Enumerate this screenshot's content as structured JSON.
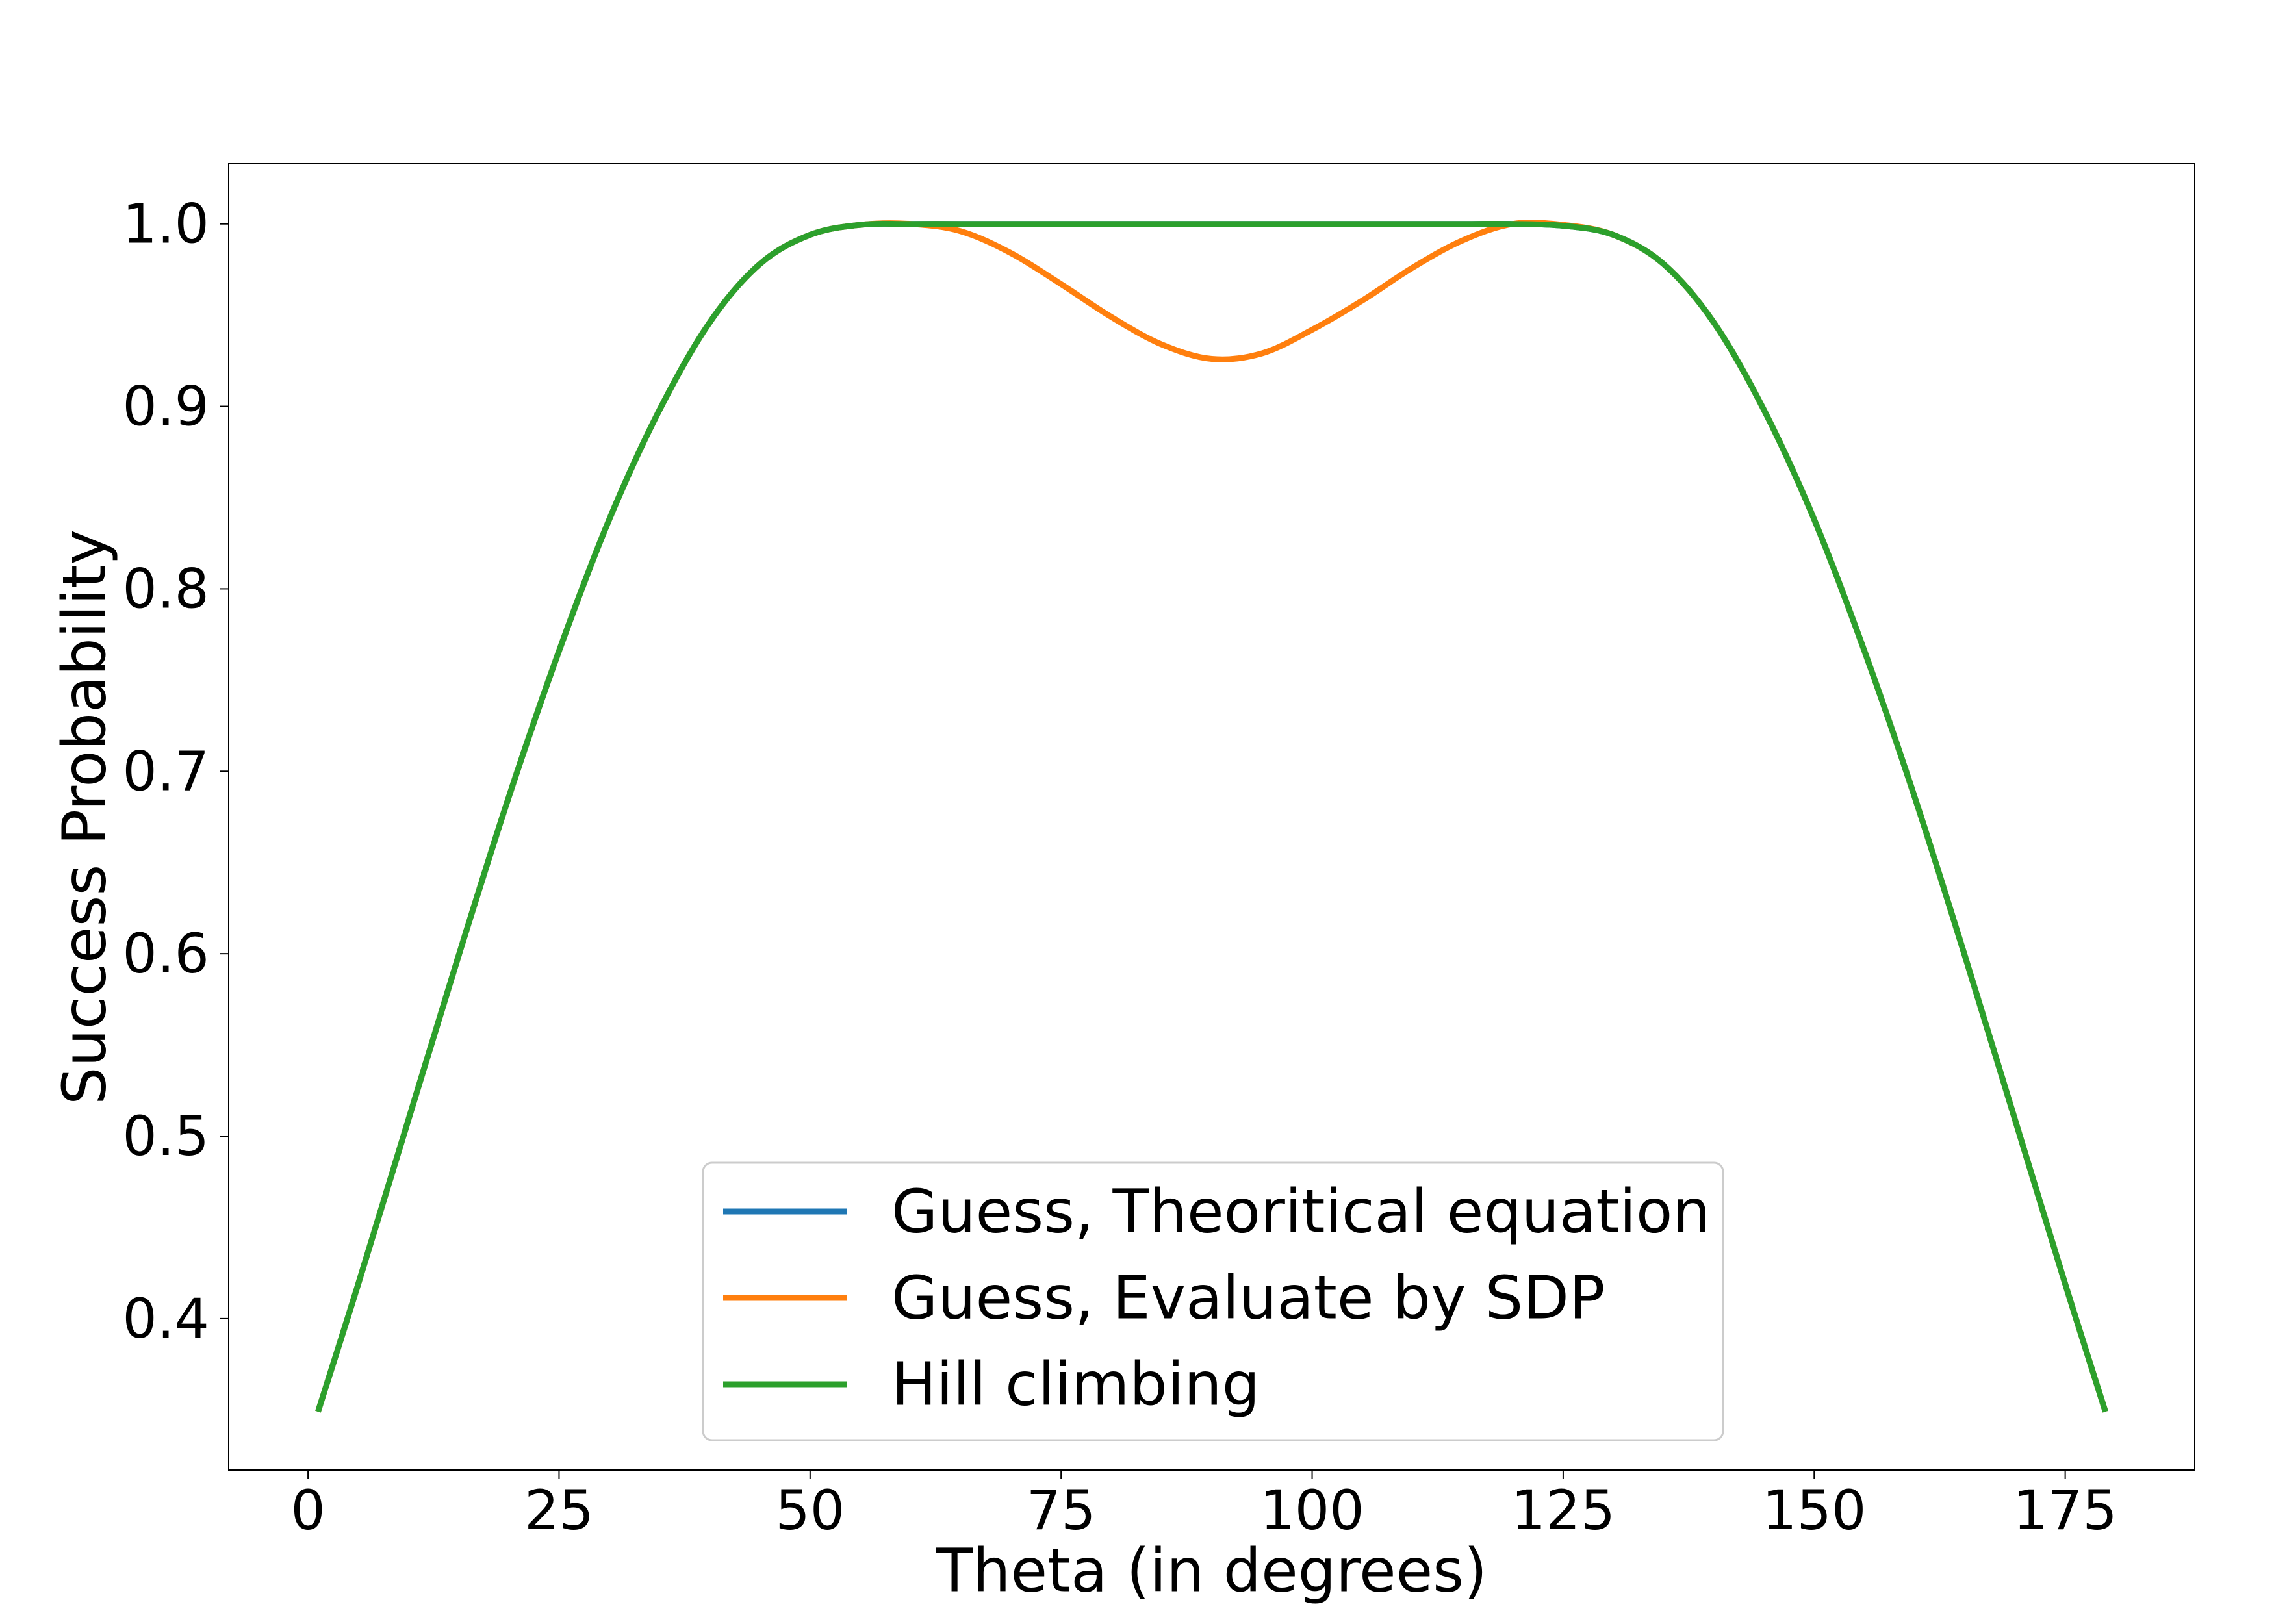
{
  "chart_data": {
    "type": "line",
    "title": "",
    "xlabel": "Theta (in degrees)",
    "ylabel": "Success Probability",
    "xlim": [
      -7.9,
      187.9
    ],
    "ylim": [
      0.317,
      1.033
    ],
    "xticks": [
      0,
      25,
      50,
      75,
      100,
      125,
      150,
      175
    ],
    "xtick_labels": [
      "0",
      "25",
      "50",
      "75",
      "100",
      "125",
      "150",
      "175"
    ],
    "yticks": [
      0.4,
      0.5,
      0.6,
      0.7,
      0.8,
      0.9,
      1.0
    ],
    "ytick_labels": [
      "0.4",
      "0.5",
      "0.6",
      "0.7",
      "0.8",
      "0.9",
      "1.0"
    ],
    "grid": false,
    "legend_position": "bottom-center",
    "x": [
      1,
      5,
      10,
      15,
      20,
      25,
      30,
      35,
      40,
      45,
      50,
      55,
      60,
      65,
      70,
      75,
      80,
      85,
      90,
      95,
      100,
      105,
      110,
      115,
      120,
      125,
      130,
      135,
      140,
      145,
      150,
      155,
      160,
      165,
      170,
      175,
      179
    ],
    "series": [
      {
        "name": "Guess, Theoritical equation",
        "color": "#1f77b4",
        "values": [
          0.349,
          0.419,
          0.509,
          0.599,
          0.686,
          0.766,
          0.838,
          0.898,
          0.946,
          0.978,
          0.994,
          0.9995,
          1.0,
          1.0,
          1.0,
          1.0,
          1.0,
          1.0,
          1.0,
          1.0,
          1.0,
          1.0,
          1.0,
          1.0,
          1.0,
          0.999,
          0.994,
          0.978,
          0.946,
          0.898,
          0.838,
          0.766,
          0.686,
          0.599,
          0.509,
          0.419,
          0.349
        ]
      },
      {
        "name": "Guess, Evaluate by SDP",
        "color": "#ff7f0e",
        "values": [
          0.349,
          0.419,
          0.509,
          0.599,
          0.686,
          0.766,
          0.838,
          0.898,
          0.946,
          0.978,
          0.994,
          0.9995,
          1.0,
          0.996,
          0.984,
          0.967,
          0.949,
          0.934,
          0.926,
          0.929,
          0.942,
          0.958,
          0.976,
          0.991,
          1.0,
          0.9995,
          0.994,
          0.978,
          0.946,
          0.898,
          0.838,
          0.766,
          0.686,
          0.599,
          0.509,
          0.419,
          0.349
        ]
      },
      {
        "name": "Hill climbing",
        "color": "#2ca02c",
        "values": [
          0.349,
          0.419,
          0.509,
          0.599,
          0.686,
          0.766,
          0.838,
          0.898,
          0.946,
          0.978,
          0.994,
          0.9995,
          1.0,
          1.0,
          1.0,
          1.0,
          1.0,
          1.0,
          1.0,
          1.0,
          1.0,
          1.0,
          1.0,
          1.0,
          1.0,
          0.999,
          0.994,
          0.978,
          0.946,
          0.898,
          0.838,
          0.766,
          0.686,
          0.599,
          0.509,
          0.419,
          0.349
        ]
      }
    ]
  }
}
